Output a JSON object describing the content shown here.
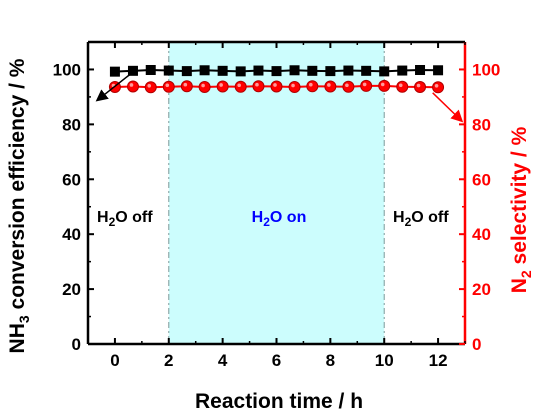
{
  "chart_data": {
    "type": "line",
    "xlabel": "Reaction time / h",
    "ylabel_left": {
      "main": "NH",
      "sub": "3",
      "rest": " conversion efficiency / %"
    },
    "ylabel_right": {
      "main": "N",
      "sub": "2",
      "rest": " selectivity / %"
    },
    "xlim": [
      -1,
      13
    ],
    "ylim": [
      0,
      110
    ],
    "x_ticks": [
      0,
      2,
      4,
      6,
      8,
      10,
      12
    ],
    "y_ticks": [
      0,
      20,
      40,
      60,
      80,
      100
    ],
    "grid": false,
    "left_axis_color": "#000000",
    "right_axis_color": "#ff0000",
    "shaded_region": {
      "x": [
        2,
        10
      ],
      "color": "#ccfdfd"
    },
    "annotations": {
      "left": {
        "main": "H",
        "sub": "2",
        "rest": "O off"
      },
      "middle": {
        "main": "H",
        "sub": "2",
        "rest": "O on"
      },
      "right": {
        "main": "H",
        "sub": "2",
        "rest": "O off"
      }
    },
    "annotation_colors": {
      "left": "#000000",
      "middle": "#0000ff",
      "right": "#000000"
    },
    "series": [
      {
        "marker": "square",
        "color": "#000000",
        "axis": "left",
        "x": [
          0,
          0.67,
          1.33,
          2,
          2.67,
          3.33,
          4,
          4.67,
          5.33,
          6,
          6.67,
          7.33,
          8,
          8.67,
          9.33,
          10,
          10.67,
          11.33,
          12
        ],
        "y": [
          99.2,
          99.5,
          99.8,
          99.6,
          99.4,
          99.7,
          99.5,
          99.3,
          99.6,
          99.4,
          99.7,
          99.5,
          99.4,
          99.6,
          99.5,
          99.3,
          99.6,
          99.8,
          99.7
        ]
      },
      {
        "marker": "circle",
        "color": "#ff0000",
        "axis": "right",
        "x": [
          0,
          0.67,
          1.33,
          2,
          2.67,
          3.33,
          4,
          4.67,
          5.33,
          6,
          6.67,
          7.33,
          8,
          8.67,
          9.33,
          10,
          10.67,
          11.33,
          12
        ],
        "y": [
          93.6,
          93.8,
          93.5,
          93.7,
          93.9,
          93.6,
          93.8,
          93.7,
          93.9,
          93.8,
          93.6,
          93.9,
          93.8,
          93.7,
          94.0,
          94.0,
          93.7,
          93.6,
          93.5
        ]
      }
    ]
  }
}
